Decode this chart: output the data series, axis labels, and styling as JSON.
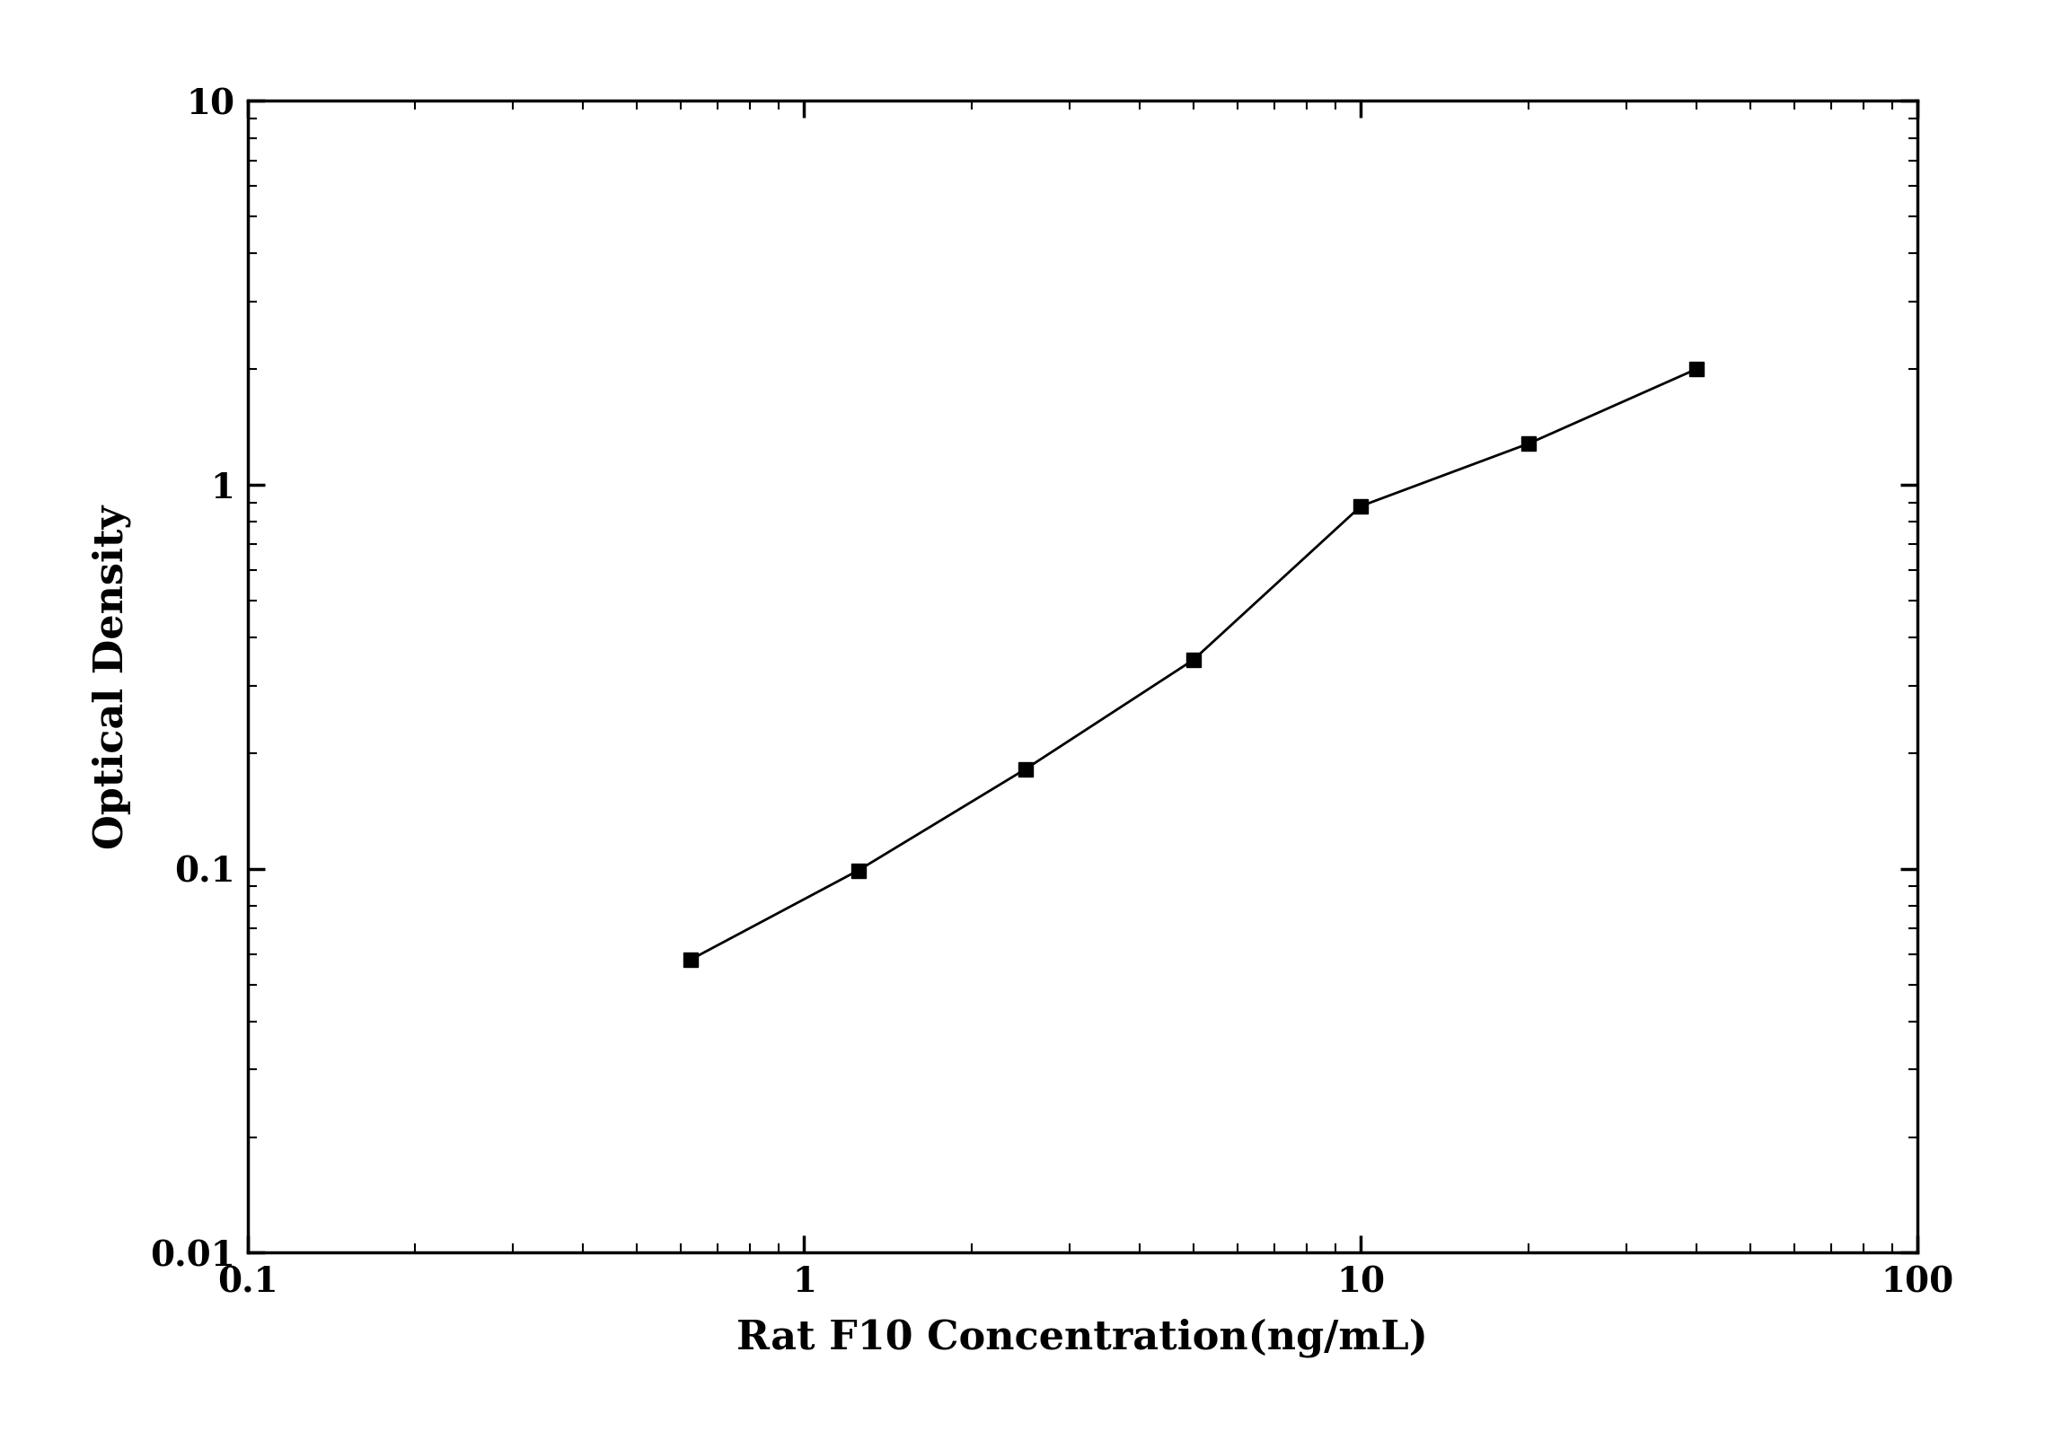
{
  "x": [
    0.625,
    1.25,
    2.5,
    5.0,
    10.0,
    20.0,
    40.0
  ],
  "y": [
    0.058,
    0.099,
    0.182,
    0.35,
    0.88,
    1.28,
    2.0
  ],
  "xlabel": "Rat F10 Concentration(ng/mL)",
  "ylabel": "Optical Density",
  "xlim": [
    0.1,
    100
  ],
  "ylim": [
    0.01,
    10
  ],
  "line_color": "#000000",
  "marker": "s",
  "marker_color": "#000000",
  "marker_size": 12,
  "line_width": 2.0,
  "background_color": "#ffffff",
  "xlabel_fontsize": 32,
  "ylabel_fontsize": 32,
  "tick_fontsize": 28,
  "spine_linewidth": 2.5
}
